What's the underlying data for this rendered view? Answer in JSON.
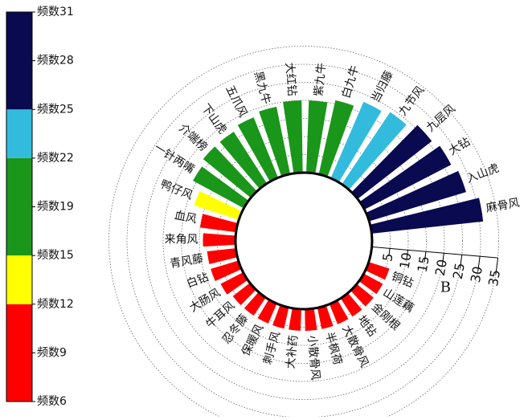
{
  "chart_data": {
    "type": "radial-bar",
    "categories": [
      "麻骨风",
      "入山虎",
      "大钻",
      "九层风",
      "九节风",
      "当归藤",
      "白九牛",
      "紫九牛",
      "大红钻",
      "黑九牛",
      "五爪风",
      "下山虎",
      "介端榜",
      "一针两嘴",
      "鸭仔风",
      "血风",
      "来角风",
      "青风藤",
      "白钻",
      "大肠风",
      "牛耳风",
      "忍冬藤",
      "保暖风",
      "刺手风",
      "大补药",
      "小散骨风",
      "半枫荷",
      "大散骨风",
      "地钻",
      "金刚根",
      "山莲藕",
      "铜钻"
    ],
    "values": [
      31,
      28,
      27,
      26,
      24,
      23,
      21,
      20,
      20,
      19,
      18,
      17,
      17,
      16,
      13,
      10,
      9,
      8,
      8,
      7,
      6,
      6,
      6,
      6,
      6,
      6,
      6,
      6,
      6,
      6,
      6,
      6
    ],
    "rlim": [
      0,
      35
    ],
    "rticks": [
      5,
      10,
      15,
      20,
      25,
      30,
      35
    ],
    "r_label": "B",
    "grid": true,
    "colorbar": {
      "ticks": [
        {
          "value": 31,
          "label": "频数31"
        },
        {
          "value": 28,
          "label": "频数28"
        },
        {
          "value": 25,
          "label": "频数25"
        },
        {
          "value": 22,
          "label": "频数22"
        },
        {
          "value": 19,
          "label": "频数19"
        },
        {
          "value": 15,
          "label": "频数15"
        },
        {
          "value": 12,
          "label": "频数12"
        },
        {
          "value": 9,
          "label": "频数9"
        },
        {
          "value": 6,
          "label": "频数6"
        }
      ],
      "segments": [
        {
          "from": 6,
          "to": 12,
          "color": "#ff0000"
        },
        {
          "from": 12,
          "to": 15,
          "color": "#ffff00"
        },
        {
          "from": 15,
          "to": 22,
          "color": "#1a961a"
        },
        {
          "from": 22,
          "to": 25,
          "color": "#33bbdd"
        },
        {
          "from": 25,
          "to": 31,
          "color": "#0a0a50"
        }
      ]
    }
  }
}
